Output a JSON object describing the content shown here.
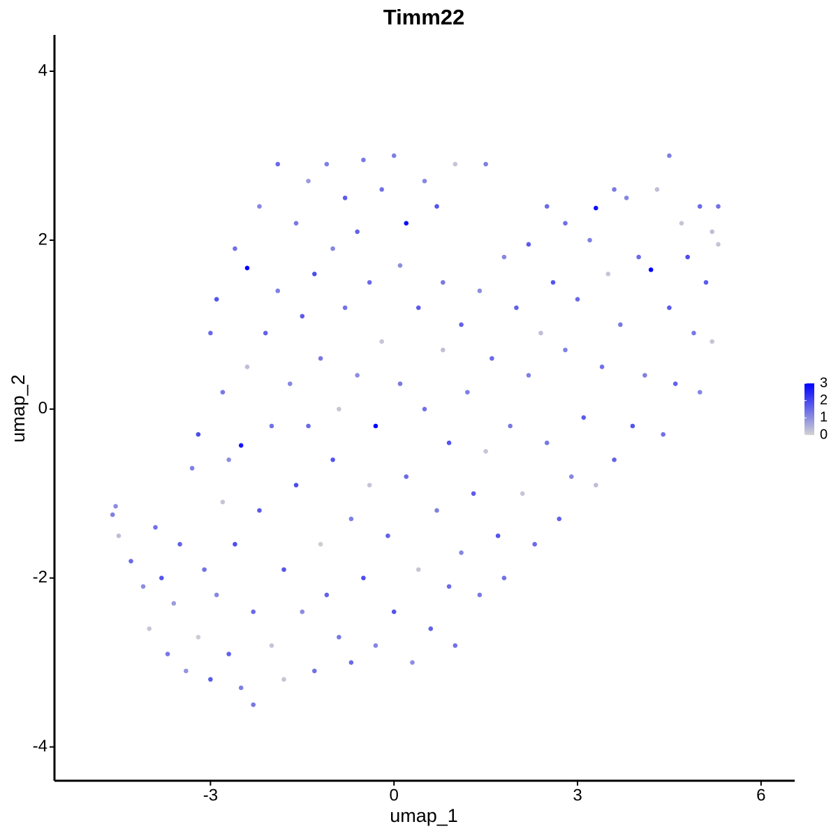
{
  "chart_data": {
    "type": "scatter",
    "title": "Timm22",
    "x_label": "umap_1",
    "y_label": "umap_2",
    "xlim": [
      -5.55,
      6.55
    ],
    "ylim": [
      -4.4,
      4.43
    ],
    "xticks": [
      -3,
      0,
      3,
      6
    ],
    "yticks": [
      -4,
      -2,
      0,
      2,
      4
    ],
    "colors": [
      "#d3d3d3",
      "#0000ff"
    ],
    "clim": [
      0,
      3
    ],
    "cticks": [
      0,
      1,
      2,
      3
    ],
    "x": [
      -4.6,
      -4.55,
      -4.5,
      -4.3,
      -4.1,
      -4.0,
      -3.9,
      -3.8,
      -3.7,
      -3.6,
      -3.5,
      -3.4,
      -3.3,
      -3.2,
      -3.2,
      -3.1,
      -3.0,
      -3.0,
      -2.9,
      -2.9,
      -2.8,
      -2.8,
      -2.7,
      -2.7,
      -2.6,
      -2.6,
      -2.5,
      -2.5,
      -2.4,
      -2.4,
      -2.3,
      -2.3,
      -2.2,
      -2.2,
      -2.1,
      -2.0,
      -2.0,
      -1.9,
      -1.9,
      -1.8,
      -1.8,
      -1.7,
      -1.6,
      -1.6,
      -1.5,
      -1.5,
      -1.4,
      -1.4,
      -1.3,
      -1.3,
      -1.2,
      -1.2,
      -1.1,
      -1.1,
      -1.0,
      -1.0,
      -0.9,
      -0.9,
      -0.8,
      -0.8,
      -0.7,
      -0.7,
      -0.6,
      -0.6,
      -0.5,
      -0.5,
      -0.4,
      -0.4,
      -0.3,
      -0.3,
      -0.2,
      -0.2,
      -0.1,
      0.0,
      0.0,
      0.1,
      0.1,
      0.2,
      0.2,
      0.3,
      0.4,
      0.4,
      0.5,
      0.5,
      0.6,
      0.7,
      0.7,
      0.8,
      0.8,
      0.9,
      0.9,
      1.0,
      1.0,
      1.1,
      1.1,
      1.2,
      1.3,
      1.4,
      1.4,
      1.5,
      1.5,
      1.6,
      1.7,
      1.8,
      1.8,
      1.9,
      2.0,
      2.1,
      2.2,
      2.2,
      2.3,
      2.4,
      2.5,
      2.6,
      2.7,
      2.8,
      2.8,
      2.9,
      3.0,
      3.1,
      3.2,
      3.3,
      3.3,
      3.4,
      3.5,
      3.6,
      3.7,
      3.8,
      3.9,
      4.0,
      4.1,
      4.2,
      4.3,
      4.4,
      4.5,
      4.5,
      4.6,
      4.7,
      4.8,
      4.9,
      5.0,
      5.0,
      5.1,
      5.2,
      5.3,
      5.3,
      5.2,
      3.6,
      2.5
    ],
    "y": [
      -1.25,
      -1.15,
      -1.5,
      -1.8,
      -2.1,
      -2.6,
      -1.4,
      -2.0,
      -2.9,
      -2.3,
      -1.6,
      -3.1,
      -0.7,
      -2.7,
      -0.3,
      -1.9,
      -3.2,
      0.9,
      -2.2,
      1.3,
      -1.1,
      0.2,
      -2.9,
      -0.6,
      1.9,
      -1.6,
      -0.43,
      -3.3,
      1.67,
      0.5,
      -2.4,
      -3.5,
      2.4,
      -1.2,
      0.9,
      -2.8,
      -0.2,
      2.9,
      1.4,
      -1.9,
      -3.2,
      0.3,
      2.2,
      -0.9,
      -2.4,
      1.1,
      2.7,
      -0.2,
      -3.1,
      1.6,
      -1.6,
      0.6,
      2.9,
      -2.2,
      1.9,
      -0.6,
      0.0,
      -2.7,
      2.5,
      1.2,
      -1.3,
      -3.0,
      0.4,
      2.1,
      -2.0,
      2.95,
      -0.9,
      1.5,
      -0.2,
      -2.8,
      2.6,
      0.8,
      -1.5,
      3.0,
      -2.4,
      0.3,
      1.7,
      2.2,
      -0.8,
      -3.0,
      1.2,
      -1.9,
      2.7,
      0.0,
      -2.6,
      -1.2,
      2.4,
      0.7,
      1.5,
      -2.1,
      -0.4,
      2.9,
      -2.8,
      1.0,
      -1.7,
      0.2,
      -1.0,
      1.4,
      -2.2,
      2.9,
      -0.5,
      0.6,
      -1.5,
      1.8,
      -2.0,
      -0.2,
      1.2,
      -1.0,
      0.4,
      1.95,
      -1.6,
      0.9,
      -0.4,
      1.5,
      -1.3,
      0.7,
      2.2,
      -0.8,
      1.3,
      -0.1,
      2.0,
      2.38,
      -0.9,
      0.5,
      1.6,
      -0.6,
      1.0,
      2.5,
      -0.2,
      1.8,
      0.4,
      1.65,
      2.6,
      -0.3,
      1.2,
      3.0,
      0.3,
      2.2,
      1.8,
      0.9,
      2.4,
      0.2,
      1.5,
      2.1,
      2.4,
      1.95,
      0.8,
      2.6,
      2.4
    ],
    "values": [
      1.2,
      1.0,
      0.3,
      1.5,
      1.0,
      0.2,
      1.4,
      1.8,
      1.3,
      0.8,
      1.6,
      0.9,
      1.2,
      0.1,
      1.9,
      1.4,
      1.7,
      1.5,
      1.1,
      1.8,
      0.2,
      1.3,
      1.6,
      1.0,
      1.4,
      1.9,
      2.7,
      1.2,
      3.0,
      0.3,
      1.5,
      1.3,
      1.1,
      1.7,
      1.6,
      0.2,
      1.4,
      1.5,
      1.2,
      1.8,
      0.2,
      1.1,
      1.3,
      1.9,
      1.0,
      1.7,
      0.8,
      1.5,
      1.4,
      1.9,
      0.1,
      1.3,
      1.2,
      1.6,
      1.1,
      1.8,
      0.2,
      1.3,
      1.7,
      1.4,
      1.2,
      1.5,
      1.0,
      1.6,
      1.9,
      1.3,
      0.2,
      1.5,
      3.0,
      1.1,
      1.4,
      0.2,
      1.6,
      1.2,
      1.8,
      1.3,
      1.0,
      2.8,
      1.5,
      1.0,
      1.7,
      0.2,
      1.1,
      1.4,
      1.6,
      1.2,
      1.8,
      0.3,
      1.3,
      1.5,
      1.8,
      0.2,
      1.4,
      1.6,
      1.1,
      1.2,
      1.7,
      1.0,
      1.3,
      1.2,
      0.2,
      1.5,
      1.8,
      1.1,
      1.4,
      1.3,
      1.6,
      0.2,
      1.2,
      1.7,
      1.5,
      0.3,
      1.3,
      1.8,
      1.6,
      1.2,
      1.4,
      1.1,
      1.5,
      1.7,
      1.2,
      2.8,
      0.3,
      1.4,
      0.2,
      1.6,
      1.3,
      1.1,
      1.8,
      1.5,
      1.2,
      3.0,
      0.3,
      1.4,
      1.7,
      1.2,
      1.6,
      0.2,
      1.9,
      1.3,
      1.5,
      1.1,
      1.7,
      0.3,
      1.4,
      0.2,
      0.2,
      1.3,
      1.5
    ]
  }
}
